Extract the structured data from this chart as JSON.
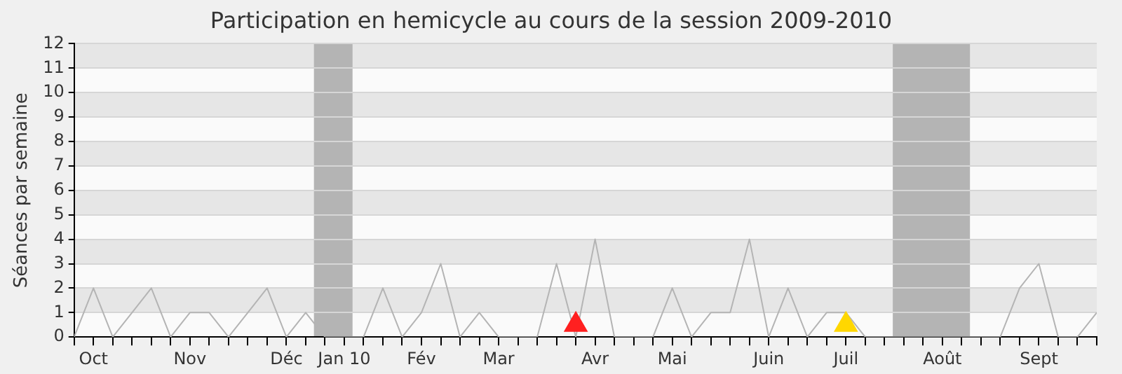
{
  "chart_data": {
    "type": "line",
    "title": "Participation en hemicycle au cours de la session 2009-2010",
    "ylabel": "Séances par semaine",
    "x": [
      "2009-09-28",
      "2009-10-05",
      "2009-10-12",
      "2009-10-19",
      "2009-10-26",
      "2009-11-02",
      "2009-11-09",
      "2009-11-16",
      "2009-11-23",
      "2009-11-30",
      "2009-12-07",
      "2009-12-14",
      "2009-12-21",
      "2009-12-28",
      "2010-01-04",
      "2010-01-11",
      "2010-01-18",
      "2010-01-25",
      "2010-02-01",
      "2010-02-08",
      "2010-02-15",
      "2010-02-22",
      "2010-03-01",
      "2010-03-08",
      "2010-03-15",
      "2010-03-22",
      "2010-03-29",
      "2010-04-05",
      "2010-04-12",
      "2010-04-19",
      "2010-04-26",
      "2010-05-03",
      "2010-05-10",
      "2010-05-17",
      "2010-05-24",
      "2010-05-31",
      "2010-06-07",
      "2010-06-14",
      "2010-06-21",
      "2010-06-28",
      "2010-07-05",
      "2010-07-12",
      "2010-07-19",
      "2010-07-26",
      "2010-08-02",
      "2010-08-09",
      "2010-08-16",
      "2010-08-23",
      "2010-08-30",
      "2010-09-06",
      "2010-09-13",
      "2010-09-20",
      "2010-09-27",
      "2010-10-04"
    ],
    "series": [
      {
        "color": "#b4b4b4",
        "values": [
          0,
          2,
          0,
          1,
          2,
          0,
          1,
          1,
          0,
          1,
          2,
          0,
          1,
          0,
          0,
          0,
          2,
          0,
          1,
          3,
          0,
          1,
          0,
          0,
          0,
          3,
          0,
          4,
          0,
          0,
          0,
          2,
          0,
          1,
          1,
          4,
          0,
          2,
          0,
          1,
          1,
          0,
          0,
          0,
          0,
          0,
          0,
          0,
          0,
          2,
          3,
          0,
          0,
          1
        ]
      },
      {
        "type": "scatter",
        "x": [
          "2010-03-29",
          "2010-07-05"
        ],
        "values": [
          0.5,
          0.5
        ],
        "colors": [
          "#ff2020",
          "#ffd700"
        ],
        "marker": "triangle"
      }
    ],
    "xlim": [
      "2009-09-28",
      "2010-10-04"
    ],
    "xticks": [
      {
        "value": "2009-09-28",
        "label": null
      },
      {
        "value": "2009-10-05",
        "label": "Oct"
      },
      {
        "value": "2009-10-12",
        "label": null
      },
      {
        "value": "2009-10-19",
        "label": null
      },
      {
        "value": "2009-10-26",
        "label": null
      },
      {
        "value": "2009-11-02",
        "label": null
      },
      {
        "value": "2009-11-09",
        "label": "Nov"
      },
      {
        "value": "2009-11-16",
        "label": null
      },
      {
        "value": "2009-11-23",
        "label": null
      },
      {
        "value": "2009-11-30",
        "label": null
      },
      {
        "value": "2009-12-07",
        "label": null
      },
      {
        "value": "2009-12-14",
        "label": "Déc"
      },
      {
        "value": "2009-12-21",
        "label": null
      },
      {
        "value": "2009-12-28",
        "label": null
      },
      {
        "value": "2010-01-04",
        "label": "Jan 10"
      },
      {
        "value": "2010-01-11",
        "label": null
      },
      {
        "value": "2010-01-18",
        "label": null
      },
      {
        "value": "2010-01-25",
        "label": null
      },
      {
        "value": "2010-02-01",
        "label": "Fév"
      },
      {
        "value": "2010-02-08",
        "label": null
      },
      {
        "value": "2010-02-15",
        "label": null
      },
      {
        "value": "2010-02-22",
        "label": null
      },
      {
        "value": "2010-03-01",
        "label": "Mar"
      },
      {
        "value": "2010-03-08",
        "label": null
      },
      {
        "value": "2010-03-15",
        "label": null
      },
      {
        "value": "2010-03-22",
        "label": null
      },
      {
        "value": "2010-03-29",
        "label": null
      },
      {
        "value": "2010-04-05",
        "label": "Avr"
      },
      {
        "value": "2010-04-12",
        "label": null
      },
      {
        "value": "2010-04-19",
        "label": null
      },
      {
        "value": "2010-04-26",
        "label": null
      },
      {
        "value": "2010-05-03",
        "label": "Mai"
      },
      {
        "value": "2010-05-10",
        "label": null
      },
      {
        "value": "2010-05-17",
        "label": null
      },
      {
        "value": "2010-05-24",
        "label": null
      },
      {
        "value": "2010-05-31",
        "label": null
      },
      {
        "value": "2010-06-07",
        "label": "Juin"
      },
      {
        "value": "2010-06-14",
        "label": null
      },
      {
        "value": "2010-06-21",
        "label": null
      },
      {
        "value": "2010-06-28",
        "label": null
      },
      {
        "value": "2010-07-05",
        "label": "Juil"
      },
      {
        "value": "2010-07-12",
        "label": null
      },
      {
        "value": "2010-07-19",
        "label": null
      },
      {
        "value": "2010-07-26",
        "label": null
      },
      {
        "value": "2010-08-02",
        "label": null
      },
      {
        "value": "2010-08-09",
        "label": "Août"
      },
      {
        "value": "2010-08-16",
        "label": null
      },
      {
        "value": "2010-08-23",
        "label": null
      },
      {
        "value": "2010-08-30",
        "label": null
      },
      {
        "value": "2010-09-06",
        "label": null
      },
      {
        "value": "2010-09-13",
        "label": "Sept"
      },
      {
        "value": "2010-09-20",
        "label": null
      },
      {
        "value": "2010-09-27",
        "label": null
      },
      {
        "value": "2010-10-04",
        "label": null
      }
    ],
    "ylim": [
      0,
      12
    ],
    "yticks": [
      0,
      1,
      2,
      3,
      4,
      5,
      6,
      7,
      8,
      9,
      10,
      11,
      12
    ],
    "bands": [
      {
        "axis": "x",
        "from": "2009-12-24",
        "to": "2010-01-07",
        "color": "#b4b4b4"
      },
      {
        "axis": "x",
        "from": "2010-07-22",
        "to": "2010-08-19",
        "color": "#b4b4b4"
      }
    ],
    "grid": "y",
    "legend": false,
    "marker": "none"
  }
}
